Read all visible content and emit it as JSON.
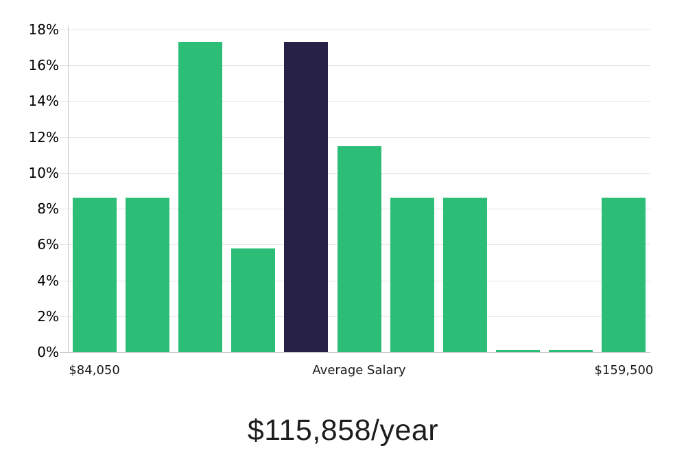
{
  "chart_data": {
    "type": "bar",
    "title": "$115,858/year",
    "description": "Salary distribution histogram; dark bar marks the average salary",
    "ylim": [
      0,
      18
    ],
    "y_tick_step": 2,
    "y_ticks": [
      "0%",
      "2%",
      "4%",
      "6%",
      "8%",
      "10%",
      "12%",
      "14%",
      "16%",
      "18%"
    ],
    "values": [
      8.6,
      8.6,
      17.3,
      5.8,
      17.3,
      11.5,
      8.6,
      8.6,
      0.1,
      0.1,
      8.6
    ],
    "highlight_index": 4,
    "highlight_meaning": "Average Salary",
    "x_ticks": [
      {
        "label": "$84,050",
        "position": "first-bar"
      },
      {
        "label": "Average Salary",
        "position": "center"
      },
      {
        "label": "$159,500",
        "position": "last-bar"
      }
    ],
    "grid": true,
    "legend": false,
    "colors": {
      "bar": "#2cbd77",
      "highlight": "#272147",
      "grid": "#e3e3e3",
      "axis": "#c9c9c9",
      "text": "#1a1a1a",
      "title_text": "#1d1d1d",
      "background": "#ffffff"
    }
  }
}
